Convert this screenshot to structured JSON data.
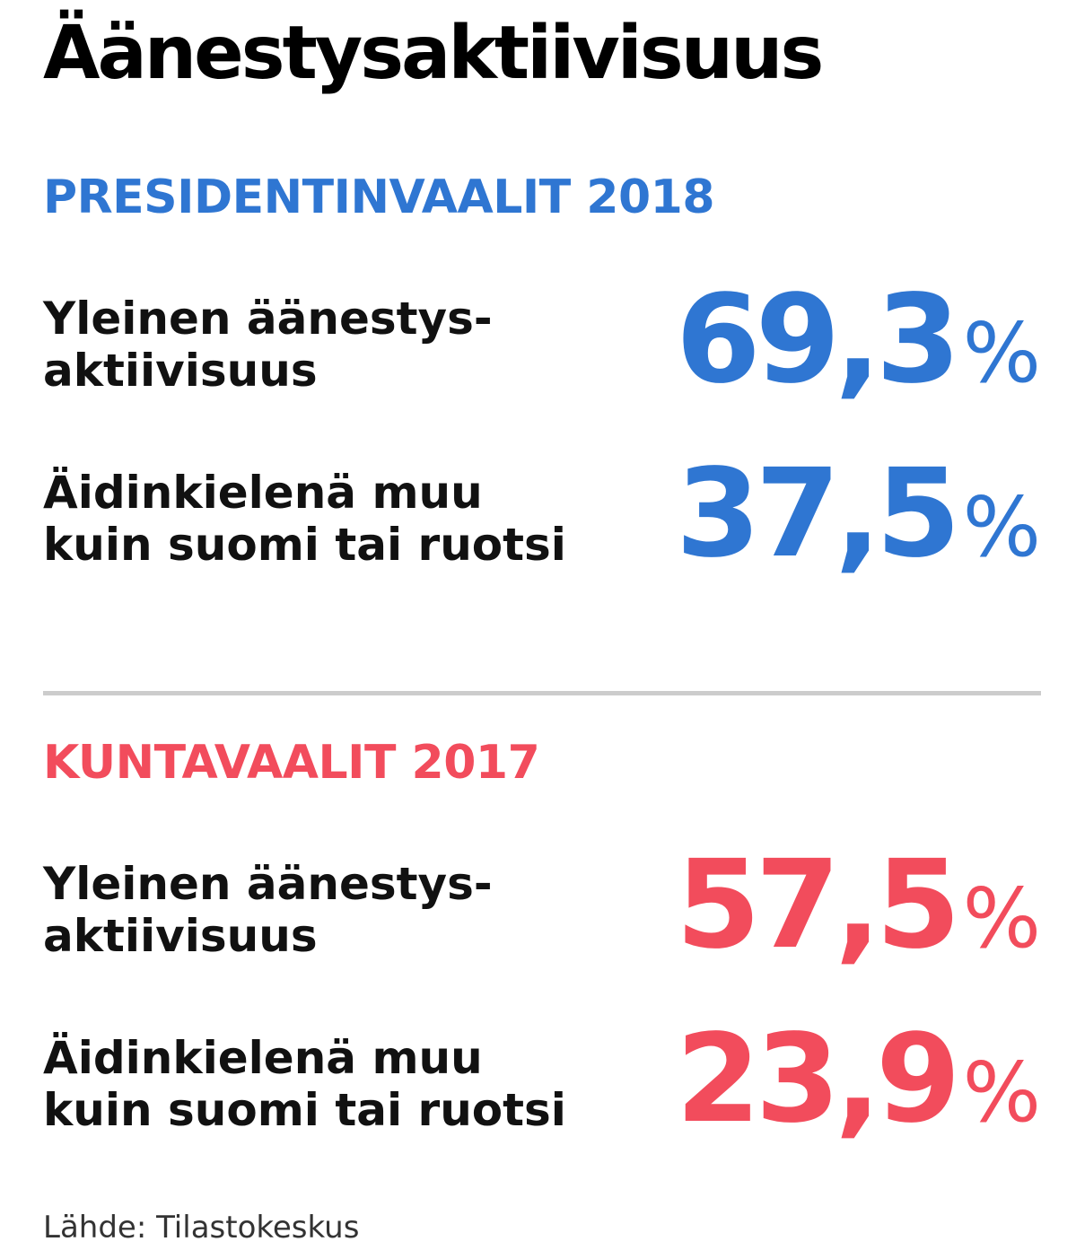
{
  "title": "Äänestysaktiivisuus",
  "chart_data": {
    "type": "table",
    "unit": "%",
    "groups": [
      {
        "heading": "PRESIDENTINVAALIT 2018",
        "color": "#2f76d2",
        "rows": [
          {
            "label_line1": "Yleinen äänestys-",
            "label_line2": "aktiivisuus",
            "value": 69.3,
            "display": "69,3"
          },
          {
            "label_line1": "Äidinkielenä muu",
            "label_line2": "kuin suomi tai ruotsi",
            "value": 37.5,
            "display": "37,5"
          }
        ]
      },
      {
        "heading": "KUNTAVAALIT 2017",
        "color": "#f24c5c",
        "rows": [
          {
            "label_line1": "Yleinen äänestys-",
            "label_line2": "aktiivisuus",
            "value": 57.5,
            "display": "57,5"
          },
          {
            "label_line1": "Äidinkielenä muu",
            "label_line2": "kuin suomi tai ruotsi",
            "value": 23.9,
            "display": "23,9"
          }
        ]
      }
    ]
  },
  "source": "Lähde: Tilastokeskus",
  "colors": {
    "divider": "#cccccc",
    "text": "#111111"
  }
}
